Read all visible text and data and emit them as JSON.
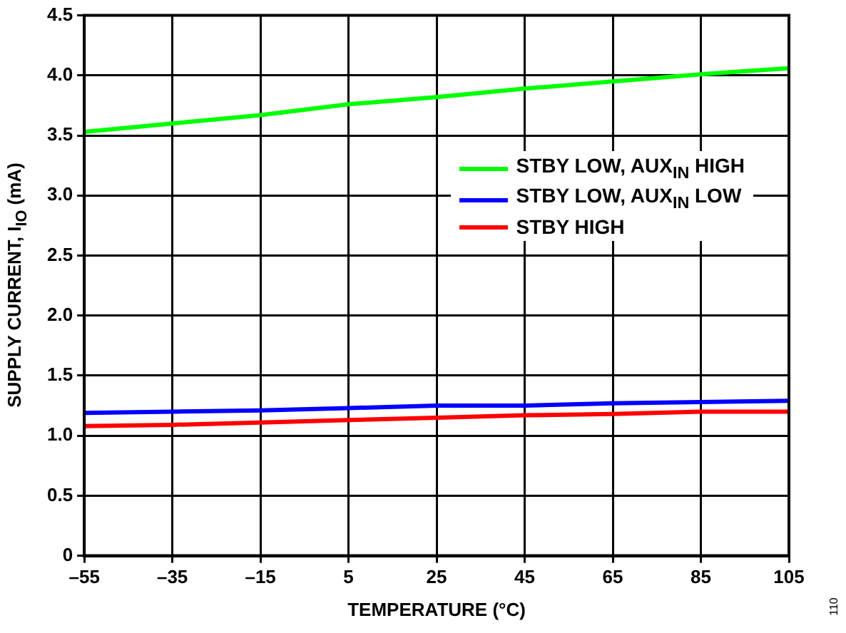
{
  "chart_data": {
    "type": "line",
    "xlabel": "TEMPERATURE (°C)",
    "ylabel": "SUPPLY CURRENT, I$_{IO}$ (mA)",
    "x": [
      -55,
      -35,
      -15,
      5,
      25,
      45,
      65,
      85,
      105
    ],
    "series": [
      {
        "name": "STBY LOW, AUX$_{IN}$ HIGH",
        "color": "#00ff00",
        "values": [
          3.53,
          3.6,
          3.67,
          3.76,
          3.82,
          3.89,
          3.95,
          4.01,
          4.06
        ]
      },
      {
        "name": "STBY LOW, AUX$_{IN}$ LOW",
        "color": "#0000ff",
        "values": [
          1.19,
          1.2,
          1.21,
          1.23,
          1.25,
          1.25,
          1.27,
          1.28,
          1.29
        ]
      },
      {
        "name": "STBY HIGH",
        "color": "#ff0000",
        "values": [
          1.08,
          1.09,
          1.11,
          1.13,
          1.15,
          1.17,
          1.18,
          1.2,
          1.2
        ]
      }
    ],
    "xlim": [
      -55,
      105
    ],
    "xticks": [
      {
        "value": -55,
        "label": "–55"
      },
      {
        "value": -35,
        "label": "–35"
      },
      {
        "value": -15,
        "label": "–15"
      },
      5,
      25,
      45,
      65,
      85,
      105
    ],
    "ylim": [
      0,
      4.5
    ],
    "yticks": [
      {
        "value": 0,
        "label": "0"
      },
      {
        "value": 0.5,
        "label": "0.5"
      },
      {
        "value": 1,
        "label": "1.0"
      },
      {
        "value": 1.5,
        "label": "1.5"
      },
      {
        "value": 2,
        "label": "2.0"
      },
      {
        "value": 2.5,
        "label": "2.5"
      },
      {
        "value": 3,
        "label": "3.0"
      },
      {
        "value": 3.5,
        "label": "3.5"
      },
      {
        "value": 4,
        "label": "4.0"
      },
      {
        "value": 4.5,
        "label": "4.5"
      }
    ],
    "grid": true,
    "legend": "right",
    "marker": "none",
    "line_style": "solid",
    "annotations": [
      "110"
    ]
  }
}
